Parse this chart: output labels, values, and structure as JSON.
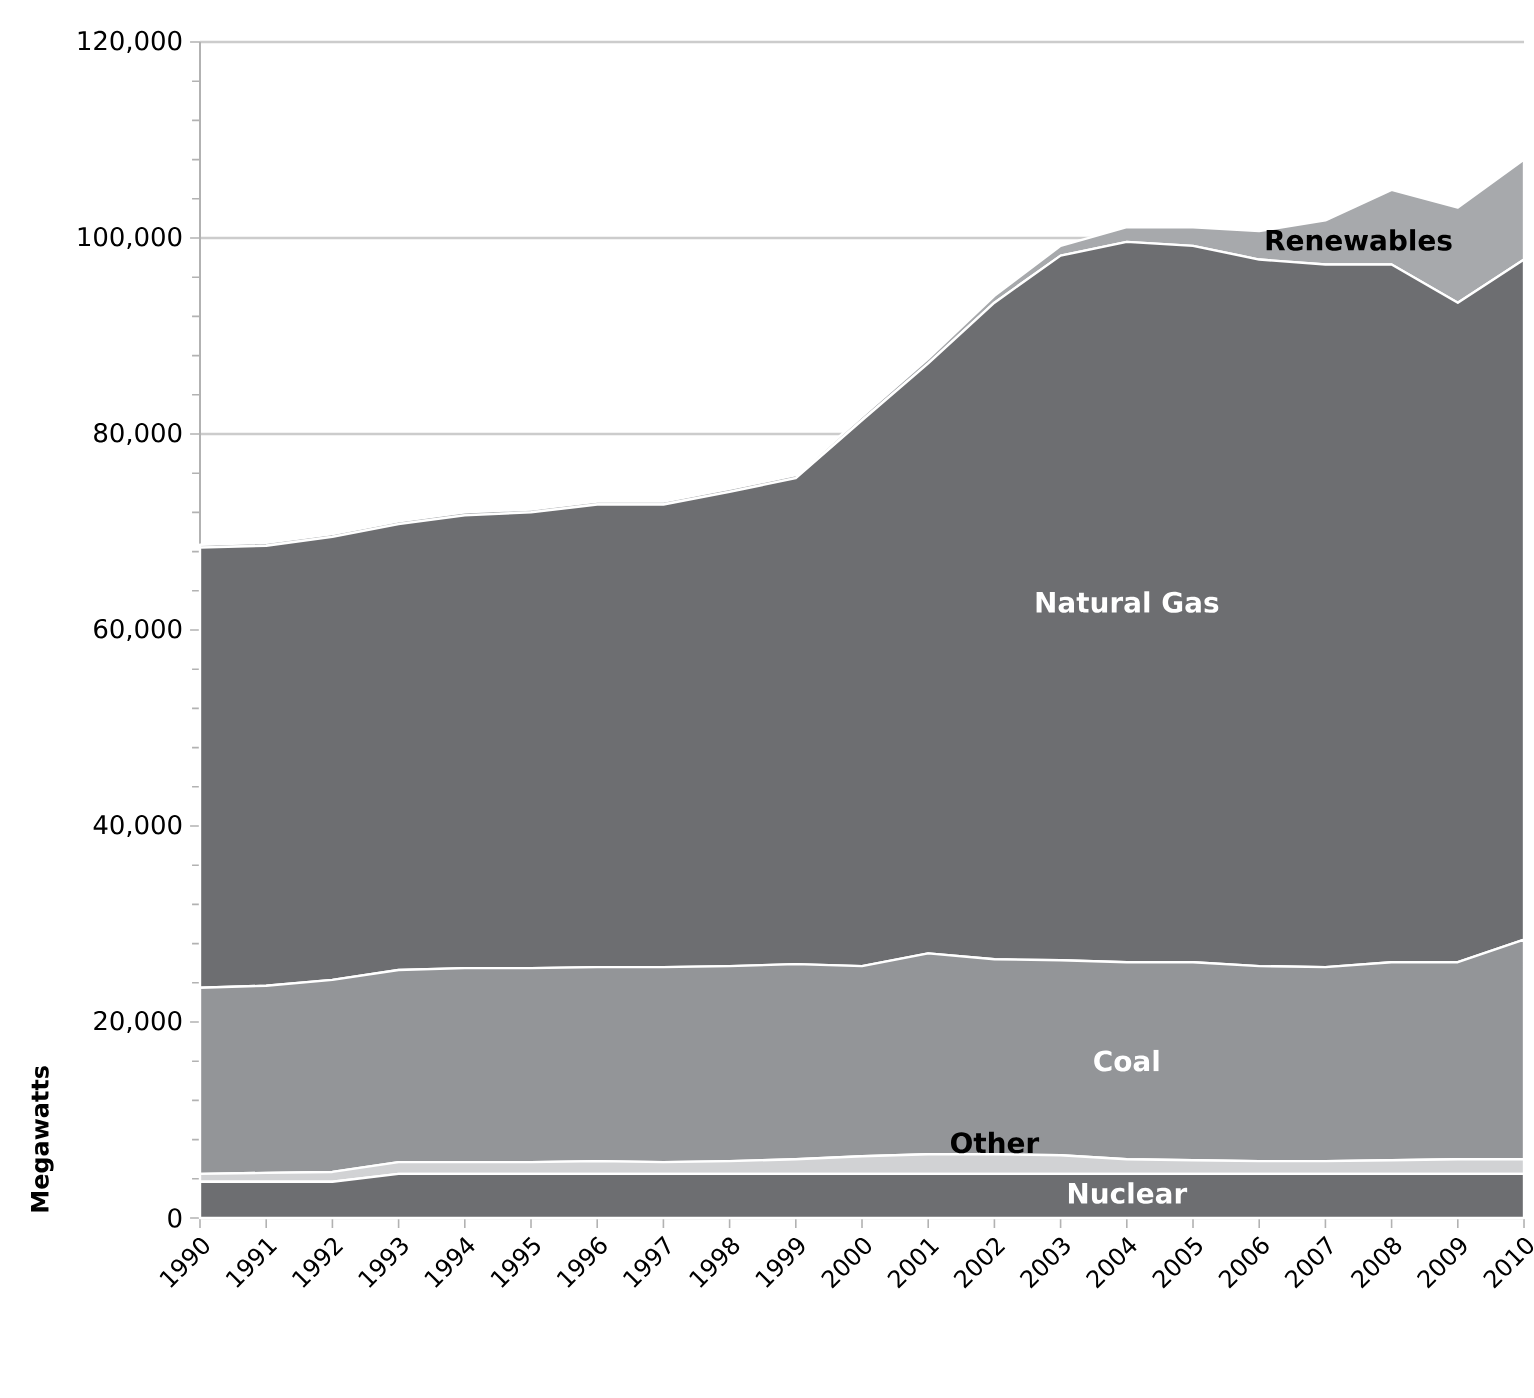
{
  "chart_data": {
    "type": "area",
    "stacked": true,
    "ylabel": "Megawatts",
    "x": [
      1990,
      1991,
      1992,
      1993,
      1994,
      1995,
      1996,
      1997,
      1998,
      1999,
      2000,
      2001,
      2002,
      2003,
      2004,
      2005,
      2006,
      2007,
      2008,
      2009,
      2010
    ],
    "series": [
      {
        "name": "Nuclear",
        "color": "#6d6e71",
        "values": [
          3700,
          3700,
          3700,
          4500,
          4500,
          4500,
          4500,
          4500,
          4500,
          4500,
          4500,
          4500,
          4500,
          4500,
          4500,
          4500,
          4500,
          4500,
          4500,
          4500,
          4500
        ]
      },
      {
        "name": "Other",
        "color": "#d1d2d4",
        "values": [
          800,
          900,
          1000,
          1200,
          1200,
          1200,
          1300,
          1200,
          1300,
          1500,
          1800,
          2000,
          2000,
          1900,
          1500,
          1400,
          1300,
          1300,
          1400,
          1500,
          1500
        ]
      },
      {
        "name": "Coal",
        "color": "#939598",
        "values": [
          19000,
          19100,
          19600,
          19600,
          19800,
          19800,
          19800,
          19900,
          19900,
          19900,
          19400,
          20500,
          19900,
          19900,
          20100,
          20200,
          19900,
          19800,
          20200,
          20100,
          22400
        ]
      },
      {
        "name": "Natural Gas",
        "color": "#6d6e71",
        "values": [
          44900,
          44900,
          45200,
          45500,
          46200,
          46500,
          47200,
          47200,
          48400,
          49600,
          55700,
          60200,
          67000,
          71900,
          73500,
          73100,
          72100,
          71700,
          71200,
          67300,
          69400
        ]
      },
      {
        "name": "Renewables",
        "color": "#a7a9ac",
        "values": [
          300,
          300,
          300,
          300,
          300,
          300,
          300,
          300,
          300,
          300,
          400,
          500,
          700,
          1000,
          1500,
          1900,
          2900,
          4500,
          7600,
          9700,
          10200
        ]
      }
    ],
    "xlim": [
      1990,
      2010
    ],
    "xticks": [
      1990,
      1991,
      1992,
      1993,
      1994,
      1995,
      1996,
      1997,
      1998,
      1999,
      2000,
      2001,
      2002,
      2003,
      2004,
      2005,
      2006,
      2007,
      2008,
      2009,
      2010
    ],
    "ylim": [
      0,
      120000
    ],
    "yticks": [
      {
        "value": 0,
        "label": "0"
      },
      {
        "value": 20000,
        "label": "20,000"
      },
      {
        "value": 40000,
        "label": "40,000"
      },
      {
        "value": 60000,
        "label": "60,000"
      },
      {
        "value": 80000,
        "label": "80,000"
      },
      {
        "value": 100000,
        "label": "100,000"
      },
      {
        "value": 120000,
        "label": "120,000"
      }
    ],
    "grid": "y"
  }
}
